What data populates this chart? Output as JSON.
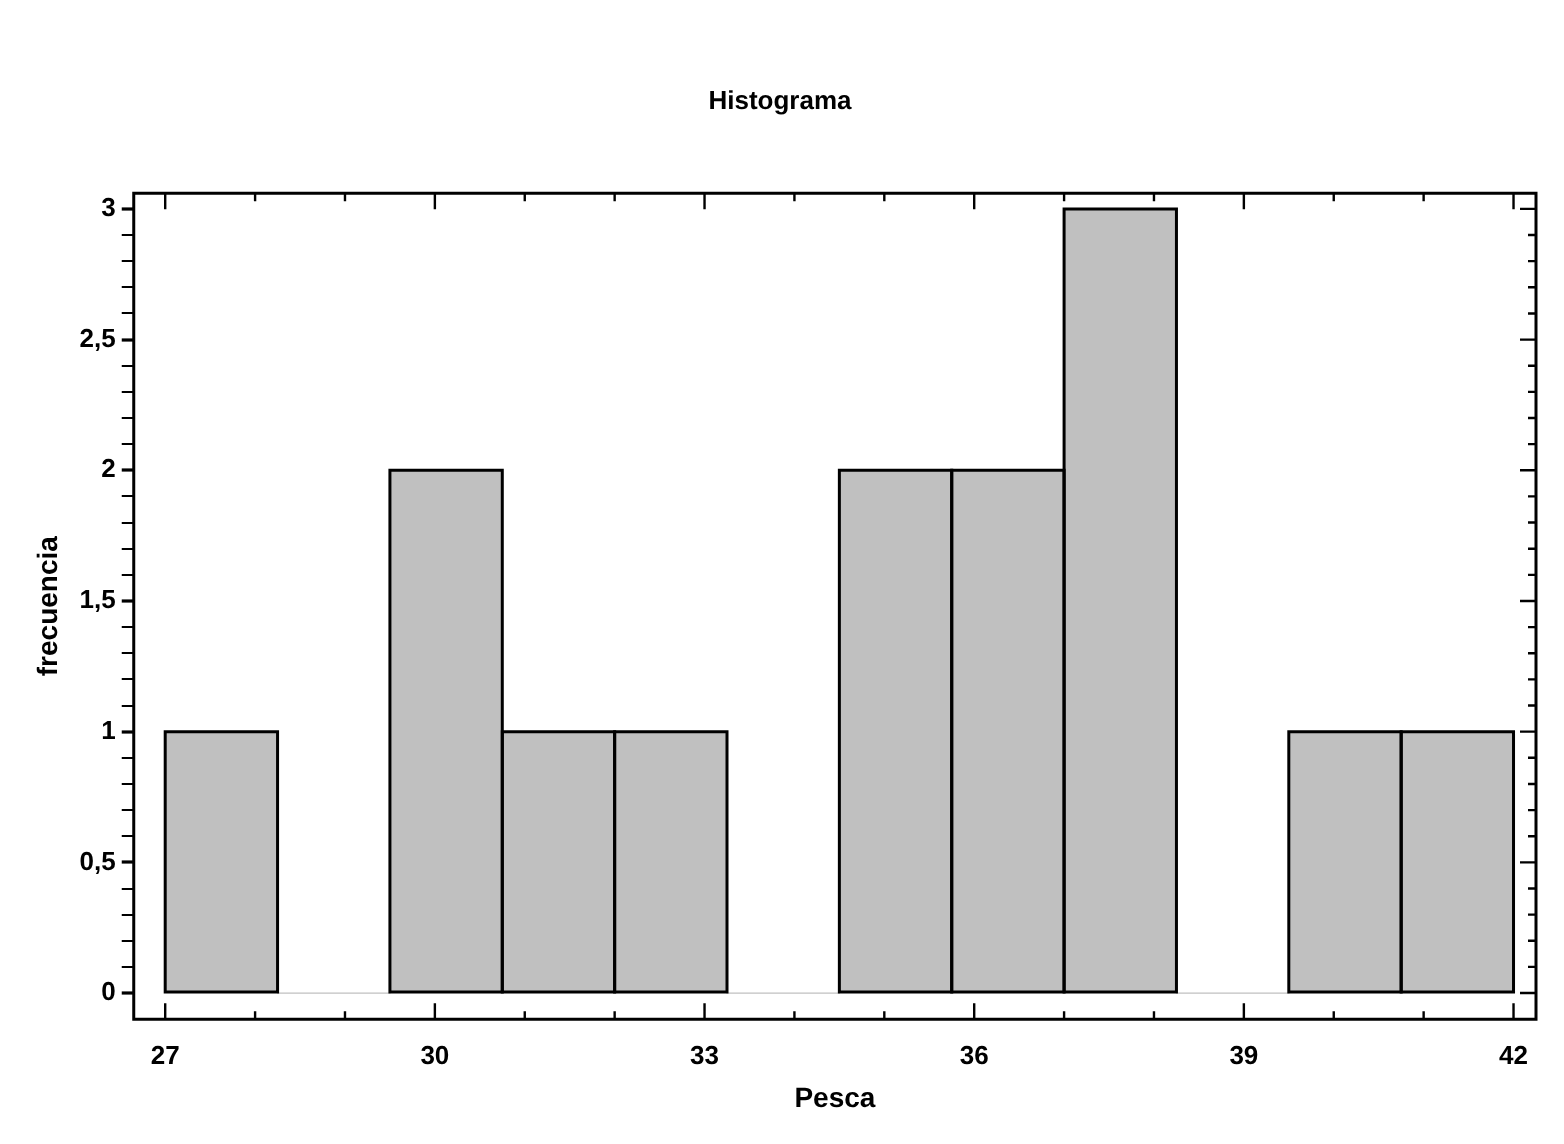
{
  "chart_data": {
    "type": "histogram",
    "title": "Histograma",
    "xlabel": "Pesca",
    "ylabel": "frecuencia",
    "bins": [
      27,
      28.25,
      29.5,
      30.75,
      32,
      33.25,
      34.5,
      35.75,
      37,
      38.25,
      39.5,
      40.75,
      42
    ],
    "values": [
      1,
      0,
      2,
      1,
      1,
      0,
      2,
      2,
      3,
      0,
      1,
      1
    ],
    "color": "#c0c0c0",
    "xlim": [
      26.65,
      42.25
    ],
    "ylim": [
      -0.1,
      3.06
    ],
    "xticks": [
      27,
      {
        "value": 28,
        "label": null
      },
      {
        "value": 29,
        "label": null
      },
      30,
      {
        "value": 31,
        "label": null
      },
      {
        "value": 32,
        "label": null
      },
      33,
      {
        "value": 34,
        "label": null
      },
      {
        "value": 35,
        "label": null
      },
      36,
      {
        "value": 37,
        "label": null
      },
      {
        "value": 38,
        "label": null
      },
      39,
      {
        "value": 40,
        "label": null
      },
      {
        "value": 41,
        "label": null
      },
      42
    ],
    "yticks": [
      0,
      {
        "value": 0.1,
        "label": null
      },
      {
        "value": 0.2,
        "label": null
      },
      {
        "value": 0.3,
        "label": null
      },
      {
        "value": 0.4,
        "label": null
      },
      {
        "value": 0.5,
        "label": "0,5"
      },
      {
        "value": 0.6,
        "label": null
      },
      {
        "value": 0.7,
        "label": null
      },
      {
        "value": 0.8,
        "label": null
      },
      {
        "value": 0.9,
        "label": null
      },
      1,
      {
        "value": 1.1,
        "label": null
      },
      {
        "value": 1.2,
        "label": null
      },
      {
        "value": 1.3,
        "label": null
      },
      {
        "value": 1.4,
        "label": null
      },
      {
        "value": 1.5,
        "label": "1,5"
      },
      {
        "value": 1.6,
        "label": null
      },
      {
        "value": 1.7,
        "label": null
      },
      {
        "value": 1.8,
        "label": null
      },
      {
        "value": 1.9,
        "label": null
      },
      2,
      {
        "value": 2.1,
        "label": null
      },
      {
        "value": 2.2,
        "label": null
      },
      {
        "value": 2.3,
        "label": null
      },
      {
        "value": 2.4,
        "label": null
      },
      {
        "value": 2.5,
        "label": "2,5"
      },
      {
        "value": 2.6,
        "label": null
      },
      {
        "value": 2.7,
        "label": null
      },
      {
        "value": 2.8,
        "label": null
      },
      {
        "value": 2.9,
        "label": null
      },
      3
    ]
  }
}
